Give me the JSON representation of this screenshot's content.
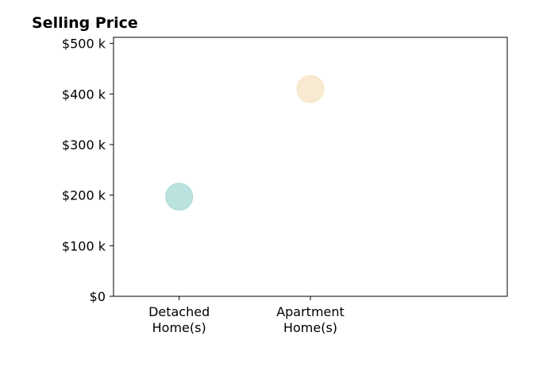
{
  "chart_data": {
    "type": "scatter",
    "title": "Selling Price",
    "xlabel": "",
    "ylabel": "",
    "categories": [
      [
        "Detached",
        "Home(s)"
      ],
      [
        "Apartment",
        "Home(s)"
      ]
    ],
    "points": [
      {
        "category_index": 0,
        "y": 197000,
        "color": "#a8dad6"
      },
      {
        "category_index": 1,
        "y": 410000,
        "color": "#f6e4c3"
      }
    ],
    "x_slots": 3,
    "ylim": [
      0,
      512000
    ],
    "yticks": [
      {
        "value": 0,
        "label": "$0"
      },
      {
        "value": 100000,
        "label": "$100 k"
      },
      {
        "value": 200000,
        "label": "$200 k"
      },
      {
        "value": 300000,
        "label": "$300 k"
      },
      {
        "value": 400000,
        "label": "$400 k"
      },
      {
        "value": 500000,
        "label": "$500 k"
      }
    ],
    "grid": false,
    "legend": "none"
  }
}
